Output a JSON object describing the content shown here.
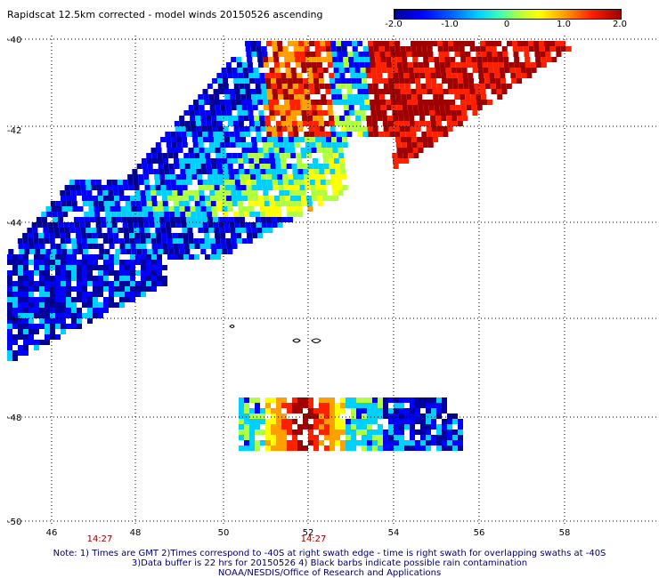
{
  "title": "Rapidscat 12.5km corrected - model winds 20150526 ascending",
  "colorbar": {
    "ticks": [
      "-2.0",
      "-1.0",
      "0",
      "1.0",
      "2.0"
    ],
    "tick_values": [
      -2.0,
      -1.0,
      0,
      1.0,
      2.0
    ],
    "colors": [
      "#00009a",
      "#0000ff",
      "#00d0ff",
      "#b0ff40",
      "#ffff00",
      "#ffa000",
      "#ff2000",
      "#a00000"
    ]
  },
  "axes": {
    "y_labels": [
      "-40",
      "-42",
      "-44",
      "-46",
      "-48",
      "-50"
    ],
    "x_labels": [
      "46",
      "48",
      "50",
      "52",
      "54",
      "56",
      "58"
    ],
    "time_labels": [
      "14:27",
      "14:27"
    ],
    "x_range": [
      45,
      59.4
    ],
    "y_range": [
      -50,
      -40
    ],
    "grid": true
  },
  "notes": [
    "Note: 1) Times are GMT 2)Times correspond to -40S at right swath edge - time is right swath for overlapping swaths at -40S",
    "3)Data buffer is 22 hrs for 20150526 4) Black barbs indicate possible rain contamination",
    "NOAA/NESDIS/Office of Research and Applications"
  ]
}
